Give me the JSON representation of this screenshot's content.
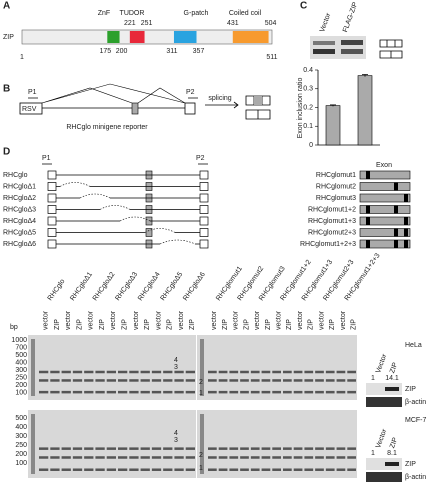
{
  "panels": {
    "a": {
      "label": "A",
      "protein": "ZIP",
      "start": 1,
      "length": 511,
      "domains": [
        {
          "name": "ZnF",
          "start": 175,
          "end": 200,
          "color": "#2ca02c"
        },
        {
          "name": "TUDOR",
          "start": 221,
          "end": 251,
          "color": "#e8283a"
        },
        {
          "name": "G-patch",
          "start": 311,
          "end": 357,
          "color": "#29a3e0"
        },
        {
          "name": "Coiled coil",
          "start": 431,
          "end": 504,
          "color": "#f79a2e"
        }
      ]
    },
    "b": {
      "label": "B",
      "primers": [
        "P1",
        "P2"
      ],
      "promoter": "RSV",
      "arrow": "splicing",
      "caption": "RHCglo minigene reporter"
    },
    "c": {
      "label": "C",
      "lanes": [
        "Vector",
        "FLAG-ZIP"
      ],
      "y_label": "Exon inclusion ratio",
      "values": [
        0.21,
        0.37
      ],
      "errors": [
        0.004,
        0.006
      ],
      "ylim": [
        0,
        0.4
      ],
      "yticks": [
        0,
        0.1,
        0.2,
        0.3,
        0.4
      ]
    },
    "d": {
      "label": "D",
      "primers": [
        "P1",
        "P2"
      ],
      "deletion_constructs": [
        "RHCglo",
        "RHCgloΔ1",
        "RHCgloΔ2",
        "RHCgloΔ3",
        "RHCgloΔ4",
        "RHCgloΔ5",
        "RHCgloΔ6"
      ],
      "exon_header": "Exon",
      "mutant_constructs": [
        "RHCglomut1",
        "RHCglomut2",
        "RHCglomut3",
        "RHCglomut1+2",
        "RHCglomut1+3",
        "RHCglomut2+3",
        "RHCglomut1+2+3"
      ],
      "gel_unit": "bp",
      "gel_lanes": [
        "vector",
        "ZIP"
      ],
      "upper_ladder": [
        "1000",
        "700",
        "500",
        "400",
        "300",
        "250",
        "200",
        "100"
      ],
      "lower_ladder": [
        "500",
        "400",
        "300",
        "250",
        "200",
        "100"
      ],
      "band_labels": [
        "4",
        "3",
        "2",
        "1"
      ],
      "blots": [
        {
          "cell": "HeLa",
          "lanes": [
            "Vector",
            "ZIP"
          ],
          "ratios": [
            "1",
            "14.1"
          ],
          "rows": [
            "ZIP",
            "β-actin"
          ]
        },
        {
          "cell": "MCF-7",
          "lanes": [
            "Vector",
            "ZIP"
          ],
          "ratios": [
            "1",
            "8.1"
          ],
          "rows": [
            "ZIP",
            "β-actin"
          ]
        }
      ]
    }
  }
}
